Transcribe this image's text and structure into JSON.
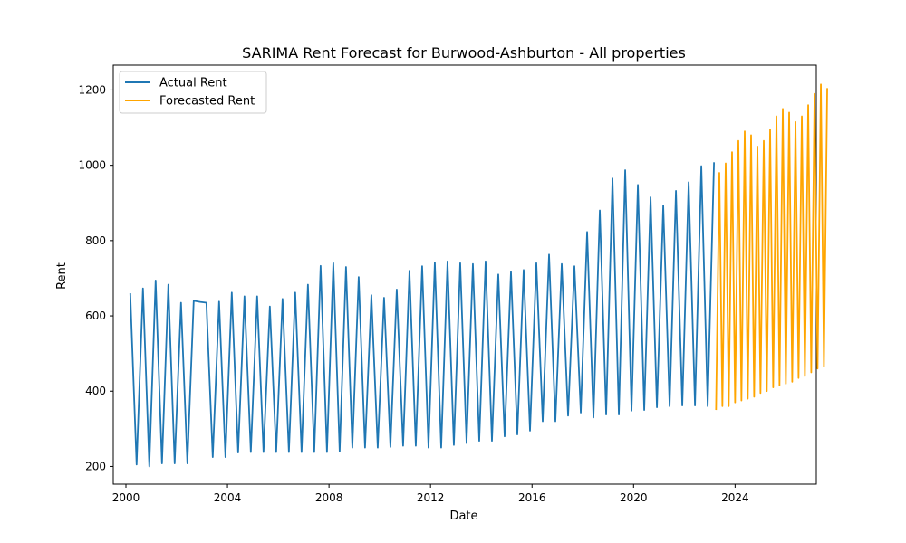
{
  "chart_data": {
    "type": "line",
    "title": "SARIMA Rent Forecast for Burwood-Ashburton - All properties",
    "xlabel": "Date",
    "ylabel": "Rent",
    "xlim": [
      1999.5,
      2027.2
    ],
    "ylim": [
      153,
      1266
    ],
    "x_ticks": [
      2000,
      2004,
      2008,
      2012,
      2016,
      2020,
      2024
    ],
    "x_tick_labels": [
      "2000",
      "2004",
      "2008",
      "2012",
      "2016",
      "2020",
      "2024"
    ],
    "y_ticks": [
      200,
      400,
      600,
      800,
      1000,
      1200
    ],
    "y_tick_labels": [
      "200",
      "400",
      "600",
      "800",
      "1000",
      "1200"
    ],
    "grid": false,
    "legend": "top-left",
    "series": [
      {
        "name": "Actual Rent",
        "color": "#1f77b4",
        "points": [
          [
            2000.17,
            660
          ],
          [
            2000.42,
            205
          ],
          [
            2000.67,
            673
          ],
          [
            2000.92,
            200
          ],
          [
            2001.17,
            694
          ],
          [
            2001.42,
            208
          ],
          [
            2001.67,
            683
          ],
          [
            2001.92,
            208
          ],
          [
            2002.17,
            635
          ],
          [
            2002.42,
            208
          ],
          [
            2002.67,
            640
          ],
          [
            2002.92,
            637
          ],
          [
            2003.17,
            635
          ],
          [
            2003.42,
            225
          ],
          [
            2003.67,
            638
          ],
          [
            2003.92,
            225
          ],
          [
            2004.17,
            662
          ],
          [
            2004.42,
            237
          ],
          [
            2004.67,
            652
          ],
          [
            2004.92,
            238
          ],
          [
            2005.17,
            652
          ],
          [
            2005.42,
            238
          ],
          [
            2005.67,
            625
          ],
          [
            2005.92,
            238
          ],
          [
            2006.17,
            645
          ],
          [
            2006.42,
            238
          ],
          [
            2006.67,
            662
          ],
          [
            2006.92,
            238
          ],
          [
            2007.17,
            683
          ],
          [
            2007.42,
            238
          ],
          [
            2007.67,
            733
          ],
          [
            2007.92,
            238
          ],
          [
            2008.17,
            740
          ],
          [
            2008.42,
            240
          ],
          [
            2008.67,
            730
          ],
          [
            2008.92,
            250
          ],
          [
            2009.17,
            703
          ],
          [
            2009.42,
            250
          ],
          [
            2009.67,
            655
          ],
          [
            2009.92,
            250
          ],
          [
            2010.17,
            648
          ],
          [
            2010.42,
            252
          ],
          [
            2010.67,
            670
          ],
          [
            2010.92,
            255
          ],
          [
            2011.17,
            720
          ],
          [
            2011.42,
            255
          ],
          [
            2011.67,
            732
          ],
          [
            2011.92,
            250
          ],
          [
            2012.17,
            742
          ],
          [
            2012.42,
            250
          ],
          [
            2012.67,
            745
          ],
          [
            2012.92,
            257
          ],
          [
            2013.17,
            740
          ],
          [
            2013.42,
            262
          ],
          [
            2013.67,
            738
          ],
          [
            2013.92,
            268
          ],
          [
            2014.17,
            745
          ],
          [
            2014.42,
            268
          ],
          [
            2014.67,
            710
          ],
          [
            2014.92,
            280
          ],
          [
            2015.17,
            717
          ],
          [
            2015.42,
            285
          ],
          [
            2015.67,
            722
          ],
          [
            2015.92,
            295
          ],
          [
            2016.17,
            740
          ],
          [
            2016.42,
            320
          ],
          [
            2016.67,
            763
          ],
          [
            2016.92,
            320
          ],
          [
            2017.17,
            738
          ],
          [
            2017.42,
            335
          ],
          [
            2017.67,
            732
          ],
          [
            2017.92,
            343
          ],
          [
            2018.17,
            823
          ],
          [
            2018.42,
            330
          ],
          [
            2018.67,
            880
          ],
          [
            2018.92,
            338
          ],
          [
            2019.17,
            965
          ],
          [
            2019.42,
            338
          ],
          [
            2019.67,
            987
          ],
          [
            2019.92,
            348
          ],
          [
            2020.17,
            948
          ],
          [
            2020.42,
            350
          ],
          [
            2020.67,
            915
          ],
          [
            2020.92,
            357
          ],
          [
            2021.17,
            893
          ],
          [
            2021.42,
            360
          ],
          [
            2021.67,
            932
          ],
          [
            2021.92,
            362
          ],
          [
            2022.17,
            955
          ],
          [
            2022.42,
            362
          ],
          [
            2022.67,
            998
          ],
          [
            2022.92,
            360
          ],
          [
            2023.17,
            1008
          ]
        ]
      },
      {
        "name": "Forecasted Rent",
        "color": "#ffa500",
        "points": [
          [
            2023.25,
            350
          ],
          [
            2023.38,
            980
          ],
          [
            2023.5,
            360
          ],
          [
            2023.63,
            1005
          ],
          [
            2023.75,
            360
          ],
          [
            2023.88,
            1035
          ],
          [
            2024.0,
            370
          ],
          [
            2024.13,
            1065
          ],
          [
            2024.25,
            375
          ],
          [
            2024.38,
            1090
          ],
          [
            2024.5,
            380
          ],
          [
            2024.63,
            1080
          ],
          [
            2024.75,
            385
          ],
          [
            2024.88,
            1050
          ],
          [
            2025.0,
            395
          ],
          [
            2025.13,
            1065
          ],
          [
            2025.25,
            400
          ],
          [
            2025.38,
            1095
          ],
          [
            2025.5,
            410
          ],
          [
            2025.63,
            1130
          ],
          [
            2025.75,
            415
          ],
          [
            2025.88,
            1150
          ],
          [
            2026.0,
            420
          ],
          [
            2026.13,
            1140
          ],
          [
            2026.25,
            425
          ],
          [
            2026.38,
            1115
          ],
          [
            2026.5,
            435
          ],
          [
            2026.63,
            1130
          ],
          [
            2026.75,
            440
          ],
          [
            2026.88,
            1160
          ],
          [
            2027.0,
            450
          ],
          [
            2027.13,
            1190
          ],
          [
            2027.25,
            460
          ],
          [
            2027.38,
            1215
          ],
          [
            2027.5,
            465
          ],
          [
            2027.63,
            1205
          ]
        ]
      }
    ]
  }
}
